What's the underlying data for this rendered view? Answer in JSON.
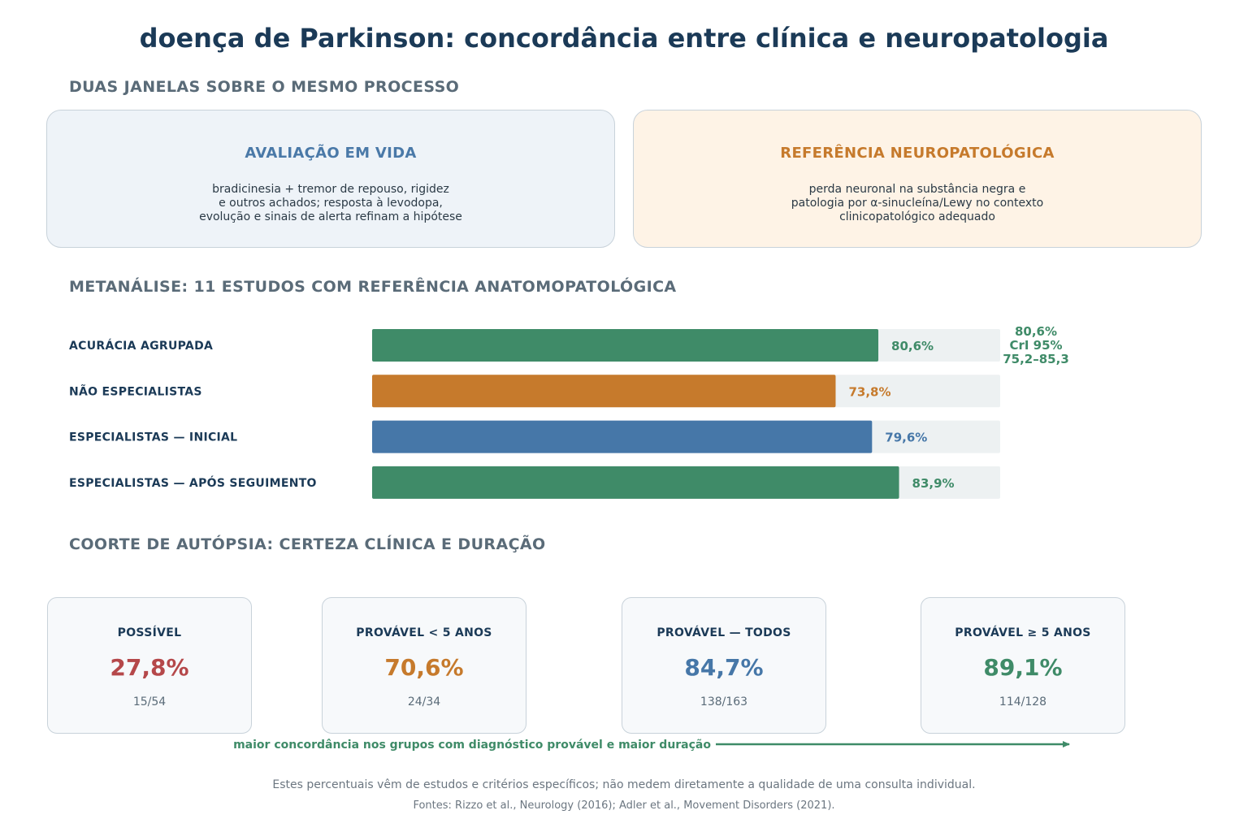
{
  "title": "doença de Parkinson: concordância entre clínica e neuropatologia",
  "section_windows": "DUAS JANELAS SOBRE O MESMO PROCESSO",
  "panels": {
    "clinical": {
      "title": "AVALIAÇÃO EM VIDA",
      "lines": [
        "bradicinesia + tremor de repouso, rigidez",
        "e outros achados; resposta à levodopa,",
        "evolução e sinais de alerta refinam a hipótese"
      ],
      "color": "#4a79a8"
    },
    "pathology": {
      "title": "REFERÊNCIA NEUROPATOLÓGICA",
      "lines": [
        "perda neuronal na substância negra e",
        "patologia por α-sinucleína/Lewy no contexto",
        "clinicopatológico adequado"
      ],
      "color": "#c67a2c"
    }
  },
  "section_meta": "METANÁLISE: 11 ESTUDOS COM REFERÊNCIA ANATOMOPATOLÓGICA",
  "chart_data": {
    "type": "bar",
    "orientation": "horizontal",
    "xlim": [
      0,
      100
    ],
    "categories": [
      "ACURÁCIA AGRUPADA",
      "NÃO ESPECIALISTAS",
      "ESPECIALISTAS — INICIAL",
      "ESPECIALISTAS — APÓS SEGUIMENTO"
    ],
    "values": [
      80.6,
      73.8,
      79.6,
      83.9
    ],
    "value_labels": [
      "80,6%",
      "73,8%",
      "79,6%",
      "83,9%"
    ],
    "colors": [
      "#3f8b68",
      "#c67a2c",
      "#4677a8",
      "#3f8b68"
    ],
    "annotation": {
      "lines": [
        "80,6%",
        "CrI 95%",
        "75,2–85,3"
      ],
      "ci": [
        75.2,
        85.3
      ]
    }
  },
  "section_cohort": "COORTE DE AUTÓPSIA: CERTEZA CLÍNICA E DURAÇÃO",
  "cohort": [
    {
      "label": "POSSÍVEL",
      "value": "27,8%",
      "count": "15/54",
      "color": "#b5484a"
    },
    {
      "label": "PROVÁVEL < 5 ANOS",
      "value": "70,6%",
      "count": "24/34",
      "color": "#c67a2c"
    },
    {
      "label": "PROVÁVEL — TODOS",
      "value": "84,7%",
      "count": "138/163",
      "color": "#4677a8"
    },
    {
      "label": "PROVÁVEL ≥ 5 ANOS",
      "value": "89,1%",
      "count": "114/128",
      "color": "#3f8b68"
    }
  ],
  "trend_text": "maior concordância nos grupos com diagnóstico provável e maior duração",
  "note": "Estes percentuais vêm de estudos e critérios específicos; não medem diretamente a qualidade de uma consulta individual.",
  "sources": "Fontes: Rizzo et al., Neurology (2016); Adler et al., Movement Disorders (2021)."
}
